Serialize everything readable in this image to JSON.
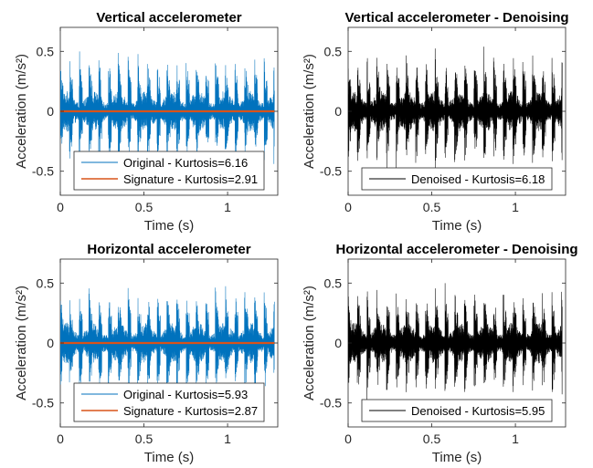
{
  "chart_data": [
    {
      "type": "line",
      "title": "Vertical accelerometer",
      "xlabel": "Time (s)",
      "ylabel": "Acceleration (m/s²)",
      "xlim": [
        0,
        1.3
      ],
      "ylim": [
        -0.7,
        0.7
      ],
      "xticks": [
        0,
        0.5,
        1
      ],
      "xtick_labels": [
        "0",
        "0.5",
        "1"
      ],
      "yticks": [
        -0.5,
        0,
        0.5
      ],
      "ytick_labels": [
        "-0.5",
        "0",
        "0.5"
      ],
      "grid": false,
      "legend_position": "bottom",
      "series": [
        {
          "name": "Original - Kurtosis=6.16",
          "color": "#0072bd",
          "signal": "impulsive-vibration",
          "peak_amplitude": 0.55,
          "pulse_count": 22
        },
        {
          "name": "Signature - Kurtosis=2.91",
          "color": "#d95319",
          "signal": "near-zero",
          "peak_amplitude": 0.01
        }
      ]
    },
    {
      "type": "line",
      "title": "Vertical accelerometer - Denoising",
      "xlabel": "Time (s)",
      "ylabel": "Acceleration (m/s²)",
      "xlim": [
        0,
        1.3
      ],
      "ylim": [
        -0.7,
        0.7
      ],
      "xticks": [
        0,
        0.5,
        1
      ],
      "xtick_labels": [
        "0",
        "0.5",
        "1"
      ],
      "yticks": [
        -0.5,
        0,
        0.5
      ],
      "ytick_labels": [
        "-0.5",
        "0",
        "0.5"
      ],
      "grid": false,
      "legend_position": "bottom",
      "series": [
        {
          "name": "Denoised - Kurtosis=6.18",
          "color": "#000000",
          "signal": "impulsive-vibration",
          "peak_amplitude": 0.55,
          "pulse_count": 22
        }
      ]
    },
    {
      "type": "line",
      "title": "Horizontal accelerometer",
      "xlabel": "Time (s)",
      "ylabel": "Acceleration (m/s²)",
      "xlim": [
        0,
        1.3
      ],
      "ylim": [
        -0.7,
        0.7
      ],
      "xticks": [
        0,
        0.5,
        1
      ],
      "xtick_labels": [
        "0",
        "0.5",
        "1"
      ],
      "yticks": [
        -0.5,
        0,
        0.5
      ],
      "ytick_labels": [
        "-0.5",
        "0",
        "0.5"
      ],
      "grid": false,
      "legend_position": "bottom",
      "series": [
        {
          "name": "Original - Kurtosis=5.93",
          "color": "#0072bd",
          "signal": "impulsive-vibration",
          "peak_amplitude": 0.52,
          "pulse_count": 22
        },
        {
          "name": "Signature - Kurtosis=2.87",
          "color": "#d95319",
          "signal": "near-zero",
          "peak_amplitude": 0.01
        }
      ]
    },
    {
      "type": "line",
      "title": "Horizontal accelerometer - Denoising",
      "xlabel": "Time (s)",
      "ylabel": "Acceleration (m/s²)",
      "xlim": [
        0,
        1.3
      ],
      "ylim": [
        -0.7,
        0.7
      ],
      "xticks": [
        0,
        0.5,
        1
      ],
      "xtick_labels": [
        "0",
        "0.5",
        "1"
      ],
      "yticks": [
        -0.5,
        0,
        0.5
      ],
      "ytick_labels": [
        "-0.5",
        "0",
        "0.5"
      ],
      "grid": false,
      "legend_position": "bottom",
      "series": [
        {
          "name": "Denoised - Kurtosis=5.95",
          "color": "#000000",
          "signal": "impulsive-vibration",
          "peak_amplitude": 0.52,
          "pulse_count": 22
        }
      ]
    }
  ]
}
